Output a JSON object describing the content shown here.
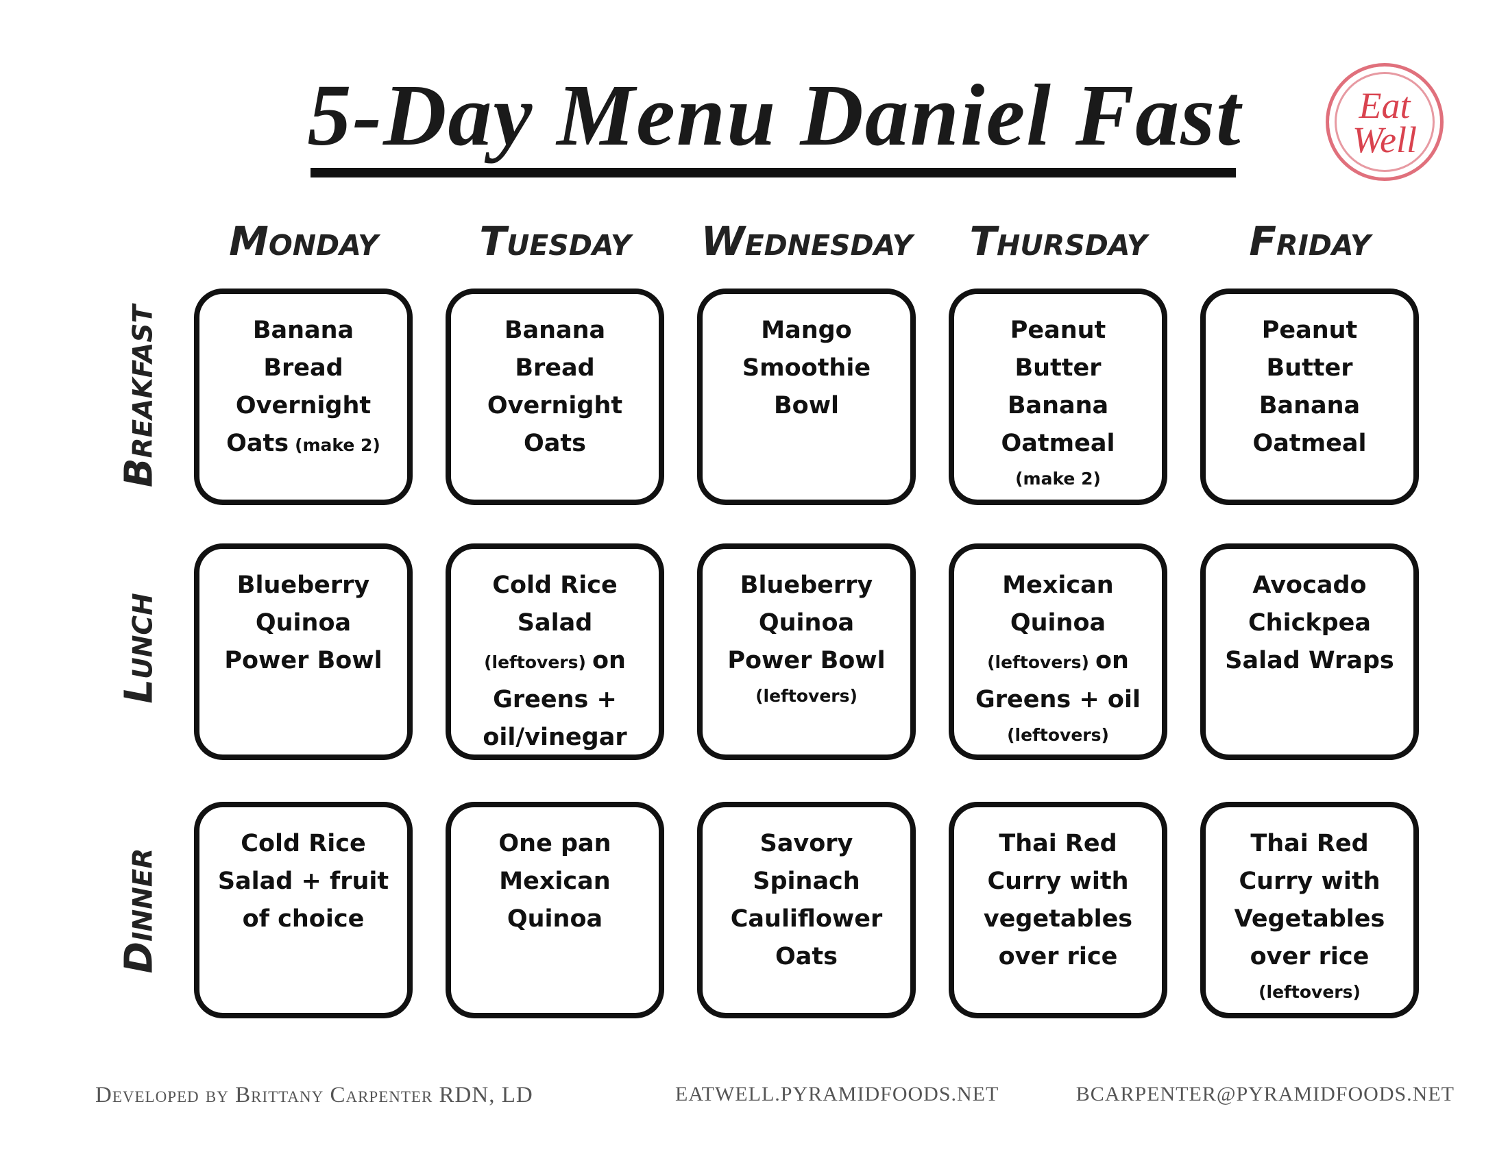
{
  "header": {
    "title": "5-Day Menu Daniel Fast",
    "logo": [
      "Eat",
      "Well"
    ]
  },
  "days": [
    "Monday",
    "Tuesday",
    "Wednesday",
    "Thursday",
    "Friday"
  ],
  "meals": [
    "Breakfast",
    "Lunch",
    "Dinner"
  ],
  "cells": [
    [
      [
        [
          "Banana"
        ],
        [
          "Bread"
        ],
        [
          "Overnight"
        ],
        [
          "Oats",
          {
            "note": "(make 2)"
          }
        ]
      ],
      [
        [
          "Banana"
        ],
        [
          "Bread"
        ],
        [
          "Overnight"
        ],
        [
          "Oats"
        ]
      ],
      [
        [
          "Mango"
        ],
        [
          "Smoothie"
        ],
        [
          "Bowl"
        ]
      ],
      [
        [
          "Peanut"
        ],
        [
          "Butter"
        ],
        [
          "Banana"
        ],
        [
          "Oatmeal"
        ],
        [
          {
            "note": "(make 2)"
          }
        ]
      ],
      [
        [
          "Peanut"
        ],
        [
          "Butter"
        ],
        [
          "Banana"
        ],
        [
          "Oatmeal"
        ]
      ]
    ],
    [
      [
        [
          "Blueberry"
        ],
        [
          "Quinoa"
        ],
        [
          "Power Bowl"
        ]
      ],
      [
        [
          "Cold Rice"
        ],
        [
          "Salad"
        ],
        [
          {
            "note": "(leftovers)"
          },
          "on"
        ],
        [
          "Greens +"
        ],
        [
          "oil/vinegar"
        ]
      ],
      [
        [
          "Blueberry"
        ],
        [
          "Quinoa"
        ],
        [
          "Power Bowl"
        ],
        [
          {
            "note": "(leftovers)"
          }
        ]
      ],
      [
        [
          "Mexican"
        ],
        [
          "Quinoa"
        ],
        [
          {
            "note": "(leftovers)"
          },
          "on"
        ],
        [
          "Greens + oil"
        ],
        [
          {
            "note": "(leftovers)"
          }
        ]
      ],
      [
        [
          "Avocado"
        ],
        [
          "Chickpea"
        ],
        [
          "Salad Wraps"
        ]
      ]
    ],
    [
      [
        [
          "Cold Rice"
        ],
        [
          "Salad + fruit"
        ],
        [
          "of choice"
        ]
      ],
      [
        [
          "One pan"
        ],
        [
          "Mexican"
        ],
        [
          "Quinoa"
        ]
      ],
      [
        [
          "Savory"
        ],
        [
          "Spinach"
        ],
        [
          "Cauliflower"
        ],
        [
          "Oats"
        ]
      ],
      [
        [
          "Thai Red"
        ],
        [
          "Curry with"
        ],
        [
          "vegetables"
        ],
        [
          "over rice"
        ]
      ],
      [
        [
          "Thai Red"
        ],
        [
          "Curry with"
        ],
        [
          "Vegetables"
        ],
        [
          "over rice"
        ],
        [
          {
            "note": "(leftovers)"
          }
        ]
      ]
    ]
  ],
  "footer": [
    "Developed by Brittany Carpenter RDN, LD",
    "EATWELL.PYRAMIDFOODS.NET",
    "BCARPENTER@PYRAMIDFOODS.NET"
  ]
}
